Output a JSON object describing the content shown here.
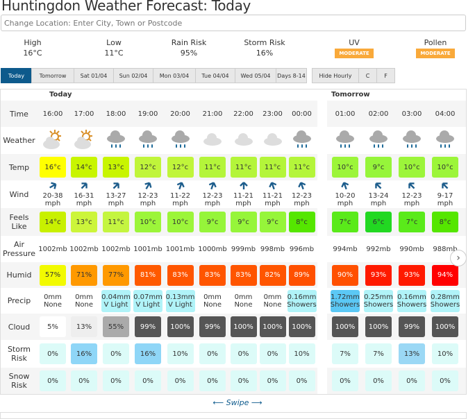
{
  "title": "Huntingdon Weather Forecast: Today",
  "location_placeholder": "Change Location: Enter City, Town or Postcode",
  "summary": [
    {
      "label": "High",
      "value": "16°C"
    },
    {
      "label": "Low",
      "value": "11°C"
    },
    {
      "label": "Rain Risk",
      "value": "95%"
    },
    {
      "label": "Storm Risk",
      "value": "16%"
    },
    {
      "label": "UV",
      "badge": "MODERATE"
    },
    {
      "label": "Pollen",
      "badge": "MODERATE"
    }
  ],
  "tabs": [
    "Today",
    "Tomorrow",
    "Sat 01/04",
    "Sun 02/04",
    "Mon 03/04",
    "Tue 04/04",
    "Wed 05/04",
    "Days 8-14"
  ],
  "controls": [
    "Hide Hourly",
    "C",
    "F"
  ],
  "day_headers": [
    "Today",
    "Tomorrow"
  ],
  "row_labels": [
    "Time",
    "Weather",
    "Temp",
    "Wind",
    "Feels Like",
    "Air Pressure",
    "Humid",
    "Precip",
    "Cloud",
    "Storm Risk",
    "Snow Risk"
  ],
  "hours": [
    {
      "time": "16:00",
      "icon": "sun-cloud-icon",
      "temp": "16°c",
      "tc": "#ffff00",
      "wind": "20-38",
      "wd": 60,
      "feels": "14°c",
      "fc": "#c8f000",
      "pres": "1002mb",
      "humid": "57%",
      "hc": "#f2fa00",
      "precip": "0mm",
      "ptype": "None",
      "pc": "",
      "cloud": "5%",
      "cc": "#ffffff",
      "storm": "0%",
      "sc": "#dcfbf8",
      "snow": "0%"
    },
    {
      "time": "17:00",
      "icon": "sun-cloud-icon",
      "temp": "14°c",
      "tc": "#c8f500",
      "wind": "16-31",
      "wd": 45,
      "feels": "13°c",
      "fc": "#ccf53a",
      "pres": "1002mb",
      "humid": "71%",
      "hc": "#ff9900",
      "precip": "0mm",
      "ptype": "None",
      "pc": "",
      "cloud": "13%",
      "cc": "#eeeeee",
      "storm": "16%",
      "sc": "#8fd6f7",
      "snow": "0%"
    },
    {
      "time": "18:00",
      "icon": "rain-cloud-icon",
      "temp": "13°c",
      "tc": "#c8f500",
      "wind": "13-27",
      "wd": 45,
      "feels": "11°c",
      "fc": "#c4f540",
      "pres": "1002mb",
      "humid": "77%",
      "hc": "#ff9900",
      "precip": "0.04mm",
      "ptype": "V Light",
      "pc": "#b0f3f8",
      "cloud": "55%",
      "cc": "#aaaaaa",
      "storm": "0%",
      "sc": "#dcfbf8",
      "snow": "0%"
    },
    {
      "time": "19:00",
      "icon": "rain-cloud-icon",
      "temp": "12°c",
      "tc": "#c0f53a",
      "wind": "12-23",
      "wd": 30,
      "feels": "10°c",
      "fc": "#9cf53a",
      "pres": "1001mb",
      "humid": "81%",
      "hc": "#ff5a00",
      "precip": "0.07mm",
      "ptype": "V Light",
      "pc": "#b0f3f8",
      "cloud": "99%",
      "cc": "#555555",
      "storm": "16%",
      "sc": "#8fd6f7",
      "snow": "0%"
    },
    {
      "time": "20:00",
      "icon": "rain-cloud-icon",
      "temp": "12°c",
      "tc": "#c0f53a",
      "wind": "11-22",
      "wd": 20,
      "feels": "10°c",
      "fc": "#9cf53a",
      "pres": "1001mb",
      "humid": "83%",
      "hc": "#ff5500",
      "precip": "0.13mm",
      "ptype": "V Light",
      "pc": "#b0f3f8",
      "cloud": "100%",
      "cc": "#555555",
      "storm": "10%",
      "sc": "#dcfbf8",
      "snow": "0%"
    },
    {
      "time": "21:00",
      "icon": "cloud-icon",
      "temp": "11°c",
      "tc": "#b4f53a",
      "wind": "12-23",
      "wd": 20,
      "feels": "9°c",
      "fc": "#96f53a",
      "pres": "1000mb",
      "humid": "83%",
      "hc": "#ff5500",
      "precip": "0mm",
      "ptype": "None",
      "pc": "",
      "cloud": "99%",
      "cc": "#555555",
      "storm": "0%",
      "sc": "#dcfbf8",
      "snow": "0%"
    },
    {
      "time": "22:00",
      "icon": "cloud-icon",
      "temp": "11°c",
      "tc": "#b4f53a",
      "wind": "11-21",
      "wd": 0,
      "feels": "9°c",
      "fc": "#96f53a",
      "pres": "999mb",
      "humid": "83%",
      "hc": "#ff5500",
      "precip": "0mm",
      "ptype": "None",
      "pc": "",
      "cloud": "100%",
      "cc": "#555555",
      "storm": "0%",
      "sc": "#dcfbf8",
      "snow": "0%"
    },
    {
      "time": "23:00",
      "icon": "cloud-icon",
      "temp": "11°c",
      "tc": "#b4f53a",
      "wind": "11-21",
      "wd": -20,
      "feels": "9°c",
      "fc": "#96f53a",
      "pres": "998mb",
      "humid": "82%",
      "hc": "#ff5500",
      "precip": "0mm",
      "ptype": "None",
      "pc": "",
      "cloud": "100%",
      "cc": "#555555",
      "storm": "0%",
      "sc": "#dcfbf8",
      "snow": "0%"
    },
    {
      "time": "00:00",
      "icon": "rain-cloud-icon",
      "temp": "11°c",
      "tc": "#b4f53a",
      "wind": "12-23",
      "wd": -20,
      "feels": "8°c",
      "fc": "#55e600",
      "pres": "996mb",
      "humid": "89%",
      "hc": "#ff5000",
      "precip": "0.16mm",
      "ptype": "Showers",
      "pc": "#b0f3f8",
      "cloud": "100%",
      "cc": "#555555",
      "storm": "10%",
      "sc": "#dcfbf8",
      "snow": "0%"
    },
    {
      "time": "01:00",
      "icon": "rain-cloud-icon",
      "temp": "10°c",
      "tc": "#9cf53a",
      "wind": "10-20",
      "wd": -20,
      "feels": "7°c",
      "fc": "#5aea1a",
      "pres": "994mb",
      "humid": "90%",
      "hc": "#ff5000",
      "precip": "1.72mm",
      "ptype": "Showers",
      "pc": "#5bc8f5",
      "cloud": "100%",
      "cc": "#555555",
      "storm": "7%",
      "sc": "#dcfbf8",
      "snow": "0%"
    },
    {
      "time": "02:00",
      "icon": "rain-cloud-icon",
      "temp": "9°c",
      "tc": "#96f53a",
      "wind": "13-24",
      "wd": -45,
      "feels": "6°c",
      "fc": "#22d822",
      "pres": "992mb",
      "humid": "93%",
      "hc": "#ff1a00",
      "precip": "0.25mm",
      "ptype": "Showers",
      "pc": "#b0f3f8",
      "cloud": "100%",
      "cc": "#555555",
      "storm": "7%",
      "sc": "#dcfbf8",
      "snow": "0%"
    },
    {
      "time": "03:00",
      "icon": "rain-cloud-icon",
      "temp": "10°c",
      "tc": "#9cf53a",
      "wind": "12-23",
      "wd": -45,
      "feels": "7°c",
      "fc": "#5aea1a",
      "pres": "990mb",
      "humid": "93%",
      "hc": "#ff1a00",
      "precip": "0.16mm",
      "ptype": "Showers",
      "pc": "#b0f3f8",
      "cloud": "99%",
      "cc": "#555555",
      "storm": "13%",
      "sc": "#9bd8f5",
      "snow": "0%"
    },
    {
      "time": "04:00",
      "icon": "rain-cloud-icon",
      "temp": "10°c",
      "tc": "#9cf53a",
      "wind": "9-17",
      "wd": -45,
      "feels": "8°c",
      "fc": "#55e600",
      "pres": "988mb",
      "humid": "94%",
      "hc": "#ff0000",
      "precip": "0.28mm",
      "ptype": "Showers",
      "pc": "#b0f3f8",
      "cloud": "100%",
      "cc": "#555555",
      "storm": "10%",
      "sc": "#dcfbf8",
      "snow": "0%"
    }
  ],
  "wind_unit": "mph",
  "swipe_label": "⟵ Swipe ⟶",
  "next_icon": "chevron-right-icon"
}
